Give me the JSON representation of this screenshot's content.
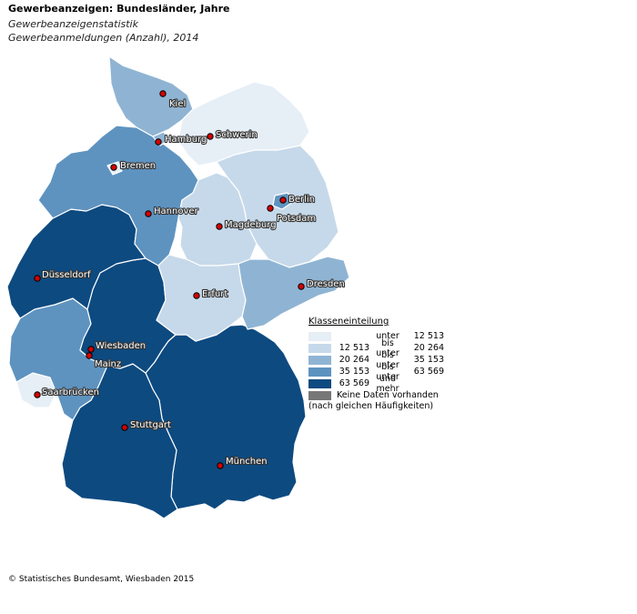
{
  "header": {
    "title": "Gewerbeanzeigen: Bundesländer, Jahre",
    "subtitle1": "Gewerbeanzeigenstatistik",
    "subtitle2": "Gewerbeanmeldungen (Anzahl), 2014"
  },
  "legend": {
    "title": "Klasseneinteilung",
    "rows": [
      {
        "a": "",
        "b": "unter",
        "c": "12 513",
        "color": "#e6eef6"
      },
      {
        "a": "12 513",
        "b": "bis unter",
        "c": "20 264",
        "color": "#c6d9ea"
      },
      {
        "a": "20 264",
        "b": "bis unter",
        "c": "35 153",
        "color": "#8fb4d3"
      },
      {
        "a": "35 153",
        "b": "bis unter",
        "c": "63 569",
        "color": "#5e93c0"
      },
      {
        "a": "63 569",
        "b": "und mehr",
        "c": "",
        "color": "#0d4a80"
      }
    ],
    "nodata": {
      "text": "Keine Daten vorhanden",
      "color": "#777777"
    },
    "note": "(nach gleichen Häufigkeiten)"
  },
  "cities": [
    {
      "name": "Kiel"
    },
    {
      "name": "Hamburg"
    },
    {
      "name": "Schwerin"
    },
    {
      "name": "Bremen"
    },
    {
      "name": "Berlin"
    },
    {
      "name": "Potsdam"
    },
    {
      "name": "Hannover"
    },
    {
      "name": "Magdeburg"
    },
    {
      "name": "Düsseldorf"
    },
    {
      "name": "Erfurt"
    },
    {
      "name": "Dresden"
    },
    {
      "name": "Wiesbaden"
    },
    {
      "name": "Mainz"
    },
    {
      "name": "Saarbrücken"
    },
    {
      "name": "Stuttgart"
    },
    {
      "name": "München"
    }
  ],
  "footer": "© Statistisches Bundesamt, Wiesbaden 2015"
}
